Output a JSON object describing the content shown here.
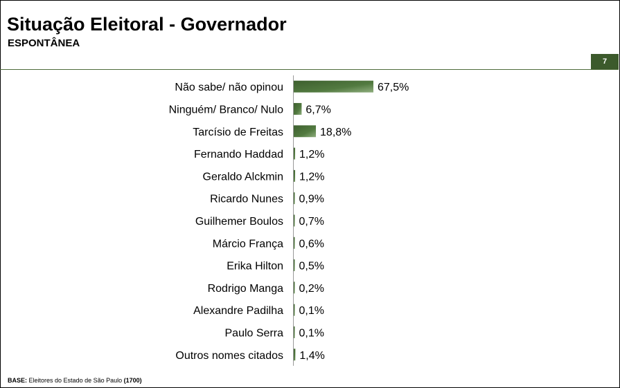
{
  "header": {
    "title": "Situação Eleitoral - Governador",
    "subtitle": "ESPONTÂNEA",
    "page_number": "7"
  },
  "footer": {
    "base_label": "BASE:",
    "base_text": "Eleitores do Estado de São Paulo",
    "base_count": "(1700)"
  },
  "colors": {
    "bar_dark": "#3d5f2e",
    "bar_light": "#8fae7e",
    "accent": "#3c5a2c"
  },
  "chart_data": {
    "type": "bar",
    "orientation": "horizontal",
    "categories": [
      "Não sabe/ não opinou",
      "Ninguém/ Branco/ Nulo",
      "Tarcísio de Freitas",
      "Fernando Haddad",
      "Geraldo Alckmin",
      "Ricardo Nunes",
      "Guilhemer Boulos",
      "Márcio França",
      "Erika Hilton",
      "Rodrigo Manga",
      "Alexandre Padilha",
      "Paulo Serra",
      "Outros nomes citados"
    ],
    "values": [
      67.5,
      6.7,
      18.8,
      1.2,
      1.2,
      0.9,
      0.7,
      0.6,
      0.5,
      0.2,
      0.1,
      0.1,
      1.4
    ],
    "value_labels": [
      "67,5%",
      "6,7%",
      "18,8%",
      "1,2%",
      "1,2%",
      "0,9%",
      "0,7%",
      "0,6%",
      "0,5%",
      "0,2%",
      "0,1%",
      "0,1%",
      "1,4%"
    ],
    "xlim": [
      0,
      100
    ],
    "grid": false
  }
}
